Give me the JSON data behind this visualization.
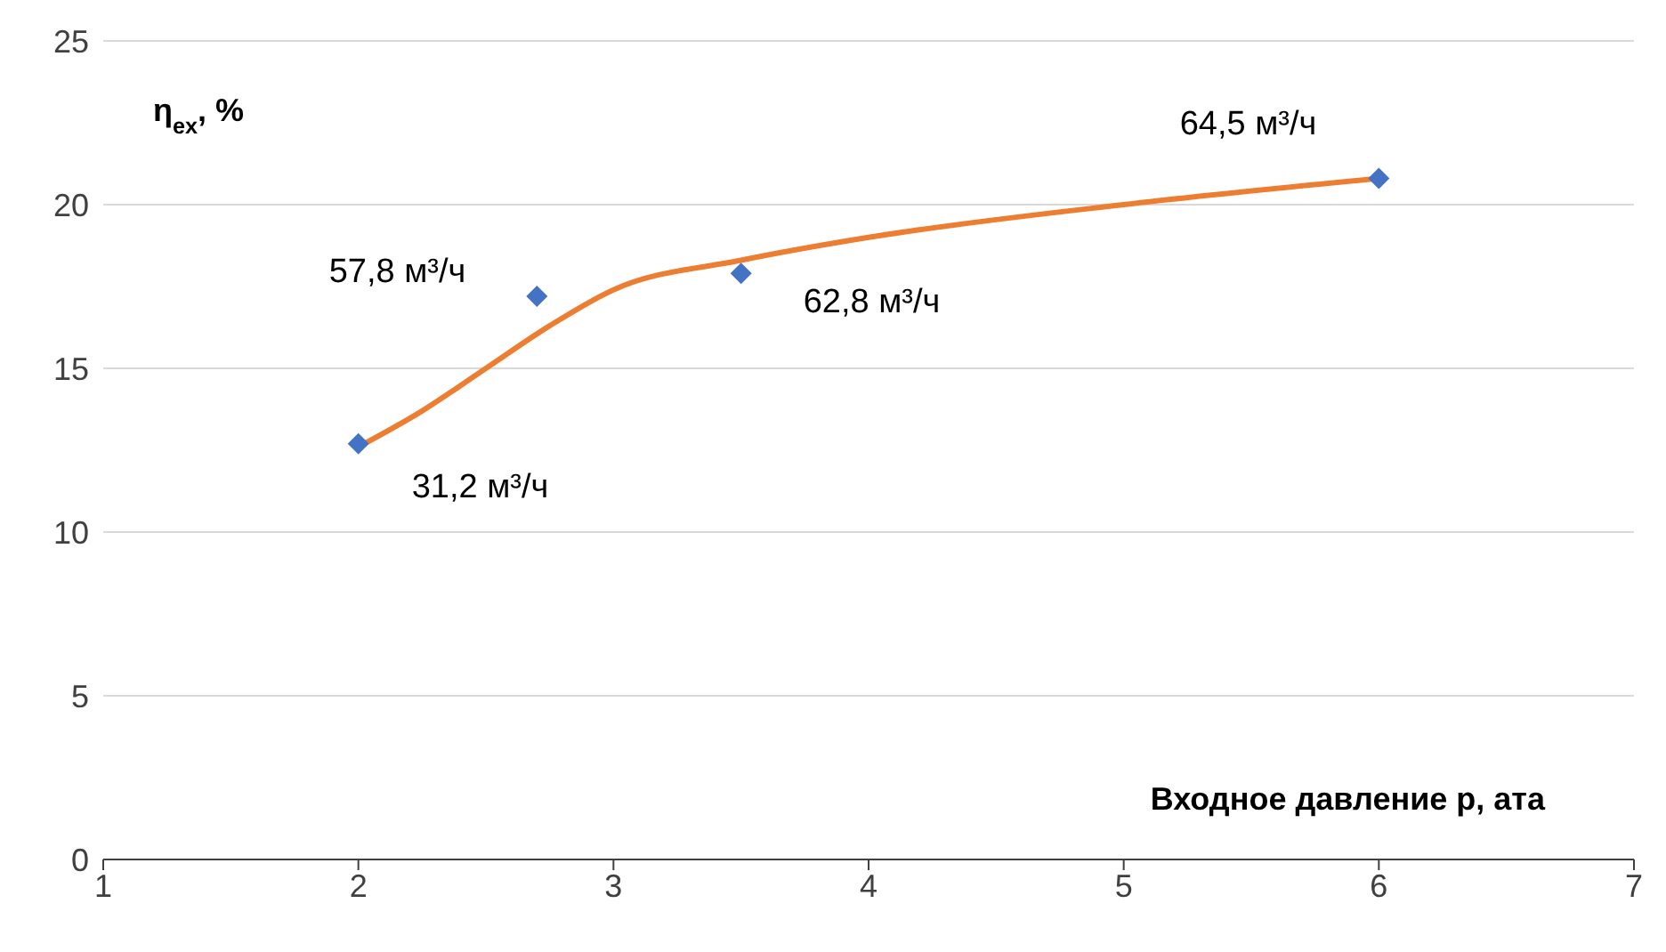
{
  "chart_data": {
    "type": "scatter",
    "xlabel": "Входное давление p, ата",
    "ylabel": "η$_{ex}$, %",
    "xlim": [
      1,
      7
    ],
    "xticks": [
      1,
      2,
      3,
      4,
      5,
      6,
      7
    ],
    "ylim": [
      0,
      25
    ],
    "yticks": [
      0,
      5,
      10,
      15,
      20,
      25
    ],
    "grid": "y",
    "legend": false,
    "series": [
      {
        "color": "#4472c4",
        "marker": "diamond",
        "x": [
          2,
          2.7,
          3.5,
          6
        ],
        "values": [
          12.7,
          17.2,
          17.9,
          20.8
        ]
      },
      {
        "type": "line",
        "color": "#ed7d31",
        "marker": "none",
        "x": [
          2,
          2.25,
          2.5,
          2.75,
          3,
          3.5,
          4,
          5,
          6
        ],
        "values": [
          12.6,
          13.7,
          15.0,
          16.3,
          17.4,
          18.3,
          19.0,
          20.0,
          20.8
        ]
      }
    ],
    "annotations": [
      {
        "text": "31,2 м³/ч",
        "x": 2,
        "y": 12.7
      },
      {
        "text": "57,8 м³/ч",
        "x": 2.7,
        "y": 17.2
      },
      {
        "text": "62,8 м³/ч",
        "x": 3.5,
        "y": 17.9
      },
      {
        "text": "64,5 м³/ч",
        "x": 6,
        "y": 20.8
      }
    ]
  }
}
